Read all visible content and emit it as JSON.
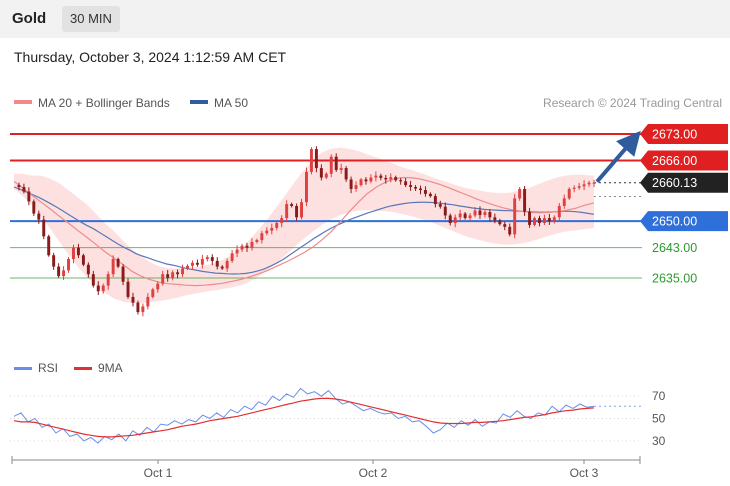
{
  "header": {
    "symbol": "Gold",
    "timeframe": "30 MIN",
    "datetime": "Thursday, October 3, 2024 1:12:59 AM CET"
  },
  "legend": {
    "ma20": {
      "label": "MA 20 + Bollinger Bands",
      "color": "#f08a8a"
    },
    "ma50": {
      "label": "MA 50",
      "color": "#2e5c9e"
    },
    "credit": "Research © 2024 Trading Central"
  },
  "rsi_legend": {
    "rsi": "RSI",
    "ma9": "9MA",
    "rsi_color": "#6a8ee8",
    "ma9_color": "#e23030"
  },
  "chart_data": [
    {
      "type": "candlestick",
      "ylim": [
        2616,
        2678
      ],
      "current_price": "2660.13",
      "levels": [
        {
          "value": 2673.0,
          "label": "2673.00",
          "kind": "resistance",
          "color": "#e02020"
        },
        {
          "value": 2666.0,
          "label": "2666.00",
          "kind": "resistance",
          "color": "#e02020"
        },
        {
          "value": 2650.0,
          "label": "2650.00",
          "kind": "pivot",
          "color": "#2e6fd9"
        },
        {
          "value": 2643.0,
          "label": "2643.00",
          "kind": "support",
          "color": "#2e9a2e"
        },
        {
          "value": 2635.0,
          "label": "2635.00",
          "kind": "support",
          "color": "#2e9a2e"
        }
      ],
      "x_ticks": [
        "Oct 1",
        "Oct 2",
        "Oct 3"
      ],
      "arrow": {
        "from": 2660.13,
        "to": 2673.0
      },
      "close": [
        2659.5,
        2659,
        2657.8,
        2655.2,
        2652,
        2650.4,
        2646,
        2641,
        2638,
        2635.5,
        2637,
        2640,
        2643,
        2641,
        2638.5,
        2636,
        2633,
        2631.5,
        2633,
        2636,
        2640,
        2638,
        2634,
        2630,
        2628.5,
        2626,
        2627.5,
        2630,
        2632,
        2633.5,
        2636,
        2635,
        2636.5,
        2636,
        2637.5,
        2638.2,
        2639,
        2638.5,
        2640,
        2640.5,
        2639.5,
        2638,
        2637.5,
        2639.5,
        2641.5,
        2642.5,
        2643.5,
        2643,
        2644.5,
        2645,
        2646.8,
        2647.5,
        2648.2,
        2649.5,
        2650.8,
        2654.5,
        2654,
        2651,
        2655,
        2663,
        2669,
        2664,
        2661.5,
        2662.5,
        2667,
        2663.5,
        2664,
        2661,
        2658.5,
        2659.5,
        2661,
        2660.5,
        2661.5,
        2662,
        2661.4,
        2661,
        2661.6,
        2660.8,
        2660.5,
        2659.5,
        2659,
        2658.6,
        2658.2,
        2657.2,
        2656.6,
        2654.5,
        2653.8,
        2651.5,
        2649.5,
        2651,
        2652,
        2650.8,
        2651.5,
        2652.8,
        2651.6,
        2652.4,
        2651,
        2650.2,
        2649.2,
        2648.5,
        2646.5,
        2656,
        2658.5,
        2652.5,
        2649,
        2650.8,
        2649.5,
        2650.8,
        2650,
        2651,
        2654,
        2656,
        2658.5,
        2658.8,
        2659.2,
        2659.7,
        2660.13,
        2660.13
      ],
      "ma50": [
        2659,
        2658.4,
        2657.7,
        2657,
        2656.3,
        2655.5,
        2654.6,
        2653.7,
        2652.7,
        2651.7,
        2650.7,
        2649.7,
        2648.8,
        2648,
        2647,
        2646,
        2645,
        2644,
        2643.1,
        2642.3,
        2641.4,
        2640.8,
        2640.3,
        2639.7,
        2639.2,
        2638.7,
        2638.4,
        2638,
        2637.6,
        2637.3,
        2637,
        2636.7,
        2636.5,
        2636.3,
        2636.2,
        2636.1,
        2636.05,
        2636.1,
        2636.2,
        2636.5,
        2636.9,
        2637.4,
        2638.1,
        2638.9,
        2639.8,
        2640.9,
        2642,
        2643.1,
        2644.2,
        2645.3,
        2646.3,
        2647.3,
        2648.2,
        2649,
        2649.7,
        2650.4,
        2651,
        2651.6,
        2652.2,
        2652.7,
        2653.2,
        2653.7,
        2654.1,
        2654.4,
        2654.65,
        2654.85,
        2654.95,
        2655,
        2654.95,
        2654.85,
        2654.7,
        2654.5,
        2654.3,
        2654,
        2653.75,
        2653.5,
        2653.3,
        2653.1,
        2653,
        2652.9,
        2652.8,
        2652.75,
        2652.7,
        2652.6,
        2652.5,
        2652.4,
        2652.35,
        2652.35,
        2652.4,
        2652.5,
        2652.6,
        2652.6,
        2652.5,
        2652.3,
        2652.05,
        2651.8
      ],
      "ma20": [
        2660.5,
        2658.7,
        2656.8,
        2655,
        2653.2,
        2651.3,
        2649.5,
        2647.6,
        2645.8,
        2643.9,
        2642,
        2640.3,
        2638.6,
        2636.8,
        2635.5,
        2634.6,
        2633.9,
        2633.5,
        2633.3,
        2633.1,
        2633,
        2633.1,
        2633.3,
        2633.6,
        2634.1,
        2634.6,
        2635.3,
        2636.1,
        2637,
        2638.1,
        2639.2,
        2640.4,
        2641.7,
        2643.2,
        2645.1,
        2647.2,
        2649.8,
        2652.5,
        2655,
        2657.3,
        2659,
        2660.3,
        2661.2,
        2661.5,
        2661.4,
        2661,
        2660.4,
        2659.7,
        2658.8,
        2657.8,
        2656.9,
        2655.9,
        2655,
        2654.2,
        2653.5,
        2653,
        2652.6,
        2652.3,
        2652.2,
        2652.3,
        2652.5,
        2652.9,
        2653.4,
        2654.2,
        2654.8
      ],
      "band_upper": [
        2662.5,
        2662.5,
        2662,
        2662,
        2661.2,
        2660,
        2658.2,
        2656.3,
        2654.5,
        2652,
        2649.5,
        2647.4,
        2644.9,
        2642.6,
        2640.8,
        2639.2,
        2638.1,
        2637.6,
        2637.5,
        2637.6,
        2637.8,
        2638.3,
        2638.8,
        2639.8,
        2641,
        2642.8,
        2645.1,
        2647.8,
        2650.7,
        2653.8,
        2657.1,
        2660.4,
        2663.5,
        2666.2,
        2668.1,
        2669.1,
        2669.4,
        2669.1,
        2668.5,
        2667.6,
        2666.8,
        2665.9,
        2665,
        2664.1,
        2663.4,
        2662.6,
        2661.7,
        2660.9,
        2660.1,
        2659.3,
        2658.7,
        2658.2,
        2657.8,
        2657.5,
        2657.4,
        2657.6,
        2658.1,
        2658.9,
        2659.9,
        2660.8,
        2661.6,
        2662.1,
        2662.3,
        2662.2,
        2662
      ],
      "band_lower": [
        2658.5,
        2656.5,
        2654.2,
        2651,
        2648,
        2644.6,
        2641.2,
        2638.1,
        2635.3,
        2633.1,
        2631.2,
        2629.6,
        2628.8,
        2628.4,
        2628.4,
        2628.6,
        2628.9,
        2629.3,
        2629.8,
        2630.4,
        2630.9,
        2631.3,
        2631.7,
        2632.1,
        2632.5,
        2633.1,
        2634,
        2635.4,
        2637.1,
        2639,
        2641.1,
        2643.3,
        2645.4,
        2647.3,
        2649,
        2650.5,
        2651.6,
        2652.4,
        2652.8,
        2652.9,
        2652.8,
        2652.6,
        2652.3,
        2651.8,
        2651.2,
        2650.5,
        2649.7,
        2648.8,
        2647.8,
        2646.8,
        2645.9,
        2645.2,
        2644.6,
        2644.1,
        2643.8,
        2643.8,
        2644.1,
        2644.6,
        2645.3,
        2646.1,
        2646.8,
        2647.3,
        2647.6,
        2647.9,
        2648.2
      ]
    },
    {
      "type": "line",
      "title": "RSI",
      "ylim": [
        20,
        80
      ],
      "y_ticks": [
        70,
        50,
        30
      ],
      "rsi": [
        52,
        55,
        47,
        50,
        42,
        45,
        37,
        41,
        34,
        36,
        30,
        33,
        28,
        34,
        31,
        36,
        30,
        39,
        35,
        42,
        38,
        45,
        44,
        48,
        45,
        49,
        47,
        53,
        50,
        55,
        51,
        58,
        55,
        61,
        58,
        65,
        62,
        70,
        66,
        72,
        69,
        77,
        72,
        74,
        70,
        75,
        68,
        63,
        65,
        61,
        57,
        59,
        56,
        54,
        55,
        50,
        52,
        47,
        48,
        43,
        37,
        40,
        46,
        42,
        48,
        44,
        49,
        43,
        47,
        46,
        54,
        51,
        57,
        52,
        50,
        55,
        53,
        61,
        56,
        62,
        59,
        63,
        60,
        61
      ],
      "ma9": [
        48,
        47,
        47,
        46.5,
        45,
        43.5,
        42,
        40.5,
        39,
        37.5,
        36,
        35,
        34,
        33.5,
        33.5,
        34,
        34.5,
        35,
        36,
        37,
        38,
        39,
        40,
        41.5,
        43,
        44,
        45,
        46.5,
        48,
        49,
        50,
        51,
        52,
        53.5,
        55,
        56.5,
        58,
        59.5,
        61,
        62.5,
        64,
        65.5,
        66.5,
        67.5,
        68,
        68,
        67.5,
        66.5,
        65,
        63.5,
        62,
        60.5,
        59,
        57.5,
        56,
        54.5,
        53,
        51.5,
        50,
        48.5,
        47,
        46,
        45.5,
        45.5,
        45.5,
        46,
        46.5,
        46.5,
        47,
        47.5,
        48,
        49,
        50,
        51,
        51.5,
        52.5,
        53.5,
        55,
        56,
        57,
        57.5,
        58.5,
        59,
        59.5
      ]
    }
  ]
}
